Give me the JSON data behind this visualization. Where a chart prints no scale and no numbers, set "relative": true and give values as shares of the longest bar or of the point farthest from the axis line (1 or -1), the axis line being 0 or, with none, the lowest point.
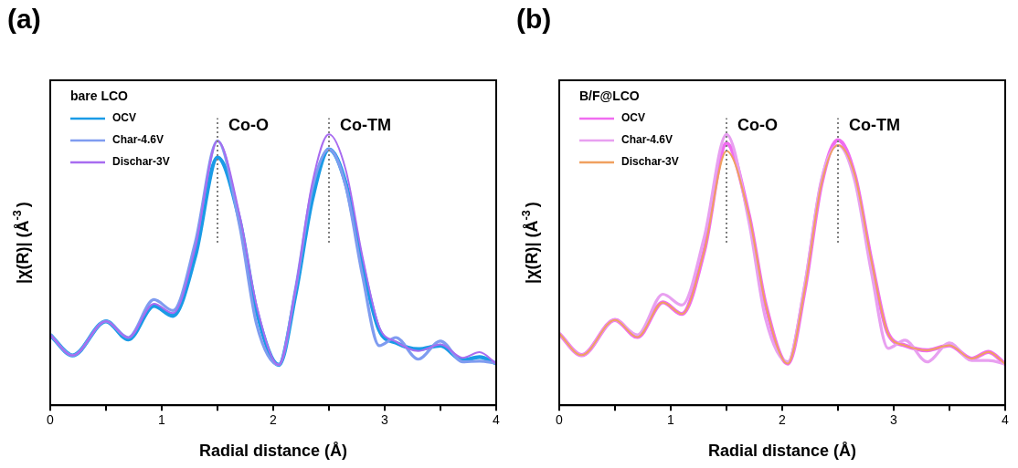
{
  "chart_data": [
    {
      "type": "line",
      "title": "(a)",
      "legend_title": "bare LCO",
      "legend": "top left",
      "relative": true,
      "tick_labels": "x",
      "xlabel": "Radial distance (Å)",
      "ylabel": "|χ(R)| (Å$^{-3}$)",
      "xlim": [
        0,
        4
      ],
      "xticks": [
        0,
        {
          "value": 0.5,
          "label": null
        },
        1,
        {
          "value": 1.5,
          "label": null
        },
        2,
        {
          "value": 2.5,
          "label": null
        },
        3,
        {
          "value": 3.5,
          "label": null
        },
        4
      ],
      "x": [
        0,
        0.2,
        0.5,
        0.7,
        0.93,
        1.1,
        1.3,
        1.5,
        1.7,
        1.85,
        2.05,
        2.2,
        2.35,
        2.5,
        2.65,
        2.8,
        2.95,
        3.1,
        3.3,
        3.5,
        3.7,
        3.85,
        4
      ],
      "ref_lines": [
        {
          "axis": "x",
          "value": 1.5,
          "label": "Co-O",
          "color": "#808080",
          "line_style": "dotted"
        },
        {
          "axis": "x",
          "value": 2.5,
          "label": "Co-TM",
          "color": "#808080",
          "line_style": "dotted"
        }
      ],
      "series": [
        {
          "name": "OCV",
          "color": "#1a9be6",
          "values": [
            0.26,
            0.184,
            0.31,
            0.243,
            0.367,
            0.33,
            0.55,
            0.915,
            0.68,
            0.35,
            0.149,
            0.41,
            0.76,
            0.945,
            0.82,
            0.52,
            0.278,
            0.231,
            0.207,
            0.22,
            0.166,
            0.178,
            0.154
          ]
        },
        {
          "name": "Char-4.6V",
          "color": "#7f9cf0",
          "values": [
            0.26,
            0.184,
            0.31,
            0.25,
            0.39,
            0.35,
            0.6,
            0.976,
            0.66,
            0.3,
            0.149,
            0.43,
            0.8,
            0.945,
            0.81,
            0.48,
            0.22,
            0.25,
            0.17,
            0.237,
            0.16,
            0.163,
            0.155
          ]
        },
        {
          "name": "Dischar-3V",
          "color": "#a86cf0",
          "values": [
            0.26,
            0.184,
            0.31,
            0.25,
            0.375,
            0.34,
            0.58,
            0.976,
            0.7,
            0.37,
            0.149,
            0.43,
            0.82,
            1.0,
            0.87,
            0.55,
            0.29,
            0.235,
            0.2,
            0.225,
            0.175,
            0.196,
            0.154
          ]
        }
      ]
    },
    {
      "type": "line",
      "title": "(b)",
      "legend_title": "B/F@LCO",
      "legend": "top left",
      "relative": true,
      "tick_labels": "x",
      "xlabel": "Radial distance (Å)",
      "ylabel": "|χ(R)| (Å$^{-3}$)",
      "xlim": [
        0,
        4
      ],
      "xticks": [
        0,
        {
          "value": 0.5,
          "label": null
        },
        1,
        {
          "value": 1.5,
          "label": null
        },
        2,
        {
          "value": 2.5,
          "label": null
        },
        3,
        {
          "value": 3.5,
          "label": null
        },
        4
      ],
      "x": [
        0,
        0.2,
        0.5,
        0.7,
        0.93,
        1.1,
        1.3,
        1.5,
        1.7,
        1.85,
        2.05,
        2.2,
        2.35,
        2.5,
        2.65,
        2.8,
        2.95,
        3.1,
        3.3,
        3.5,
        3.7,
        3.85,
        4
      ],
      "ref_lines": [
        {
          "axis": "x",
          "value": 1.5,
          "label": "Co-O",
          "color": "#808080",
          "line_style": "dotted"
        },
        {
          "axis": "x",
          "value": 2.5,
          "label": "Co-TM",
          "color": "#808080",
          "line_style": "dotted"
        }
      ],
      "series": [
        {
          "name": "OCV",
          "color": "#f06cf0",
          "values": [
            0.264,
            0.185,
            0.315,
            0.252,
            0.38,
            0.337,
            0.57,
            0.967,
            0.704,
            0.374,
            0.154,
            0.423,
            0.814,
            0.979,
            0.851,
            0.533,
            0.264,
            0.221,
            0.203,
            0.221,
            0.172,
            0.197,
            0.152
          ]
        },
        {
          "name": "Char-4.6V",
          "color": "#e8a0f0",
          "values": [
            0.264,
            0.185,
            0.315,
            0.26,
            0.41,
            0.37,
            0.62,
            1.0,
            0.68,
            0.32,
            0.16,
            0.44,
            0.83,
            0.96,
            0.83,
            0.49,
            0.21,
            0.24,
            0.16,
            0.23,
            0.165,
            0.165,
            0.152
          ]
        },
        {
          "name": "Dischar-3V",
          "color": "#f0a060",
          "values": [
            0.264,
            0.185,
            0.315,
            0.252,
            0.38,
            0.337,
            0.57,
            0.939,
            0.704,
            0.374,
            0.154,
            0.423,
            0.814,
            0.961,
            0.851,
            0.533,
            0.264,
            0.221,
            0.203,
            0.221,
            0.172,
            0.197,
            0.152
          ]
        }
      ]
    }
  ]
}
